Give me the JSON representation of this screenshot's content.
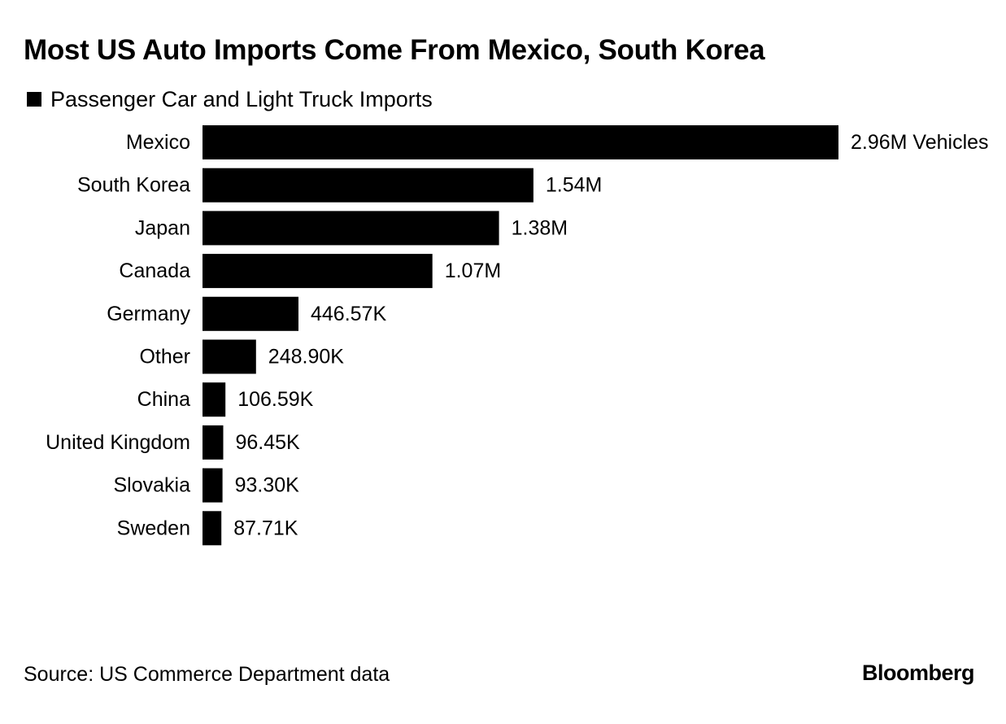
{
  "chart_data": {
    "type": "bar",
    "orientation": "horizontal",
    "title": "Most US Auto Imports Come From Mexico, South Korea",
    "legend": [
      "Passenger Car and Light Truck Imports"
    ],
    "categories": [
      "Mexico",
      "South Korea",
      "Japan",
      "Canada",
      "Germany",
      "Other",
      "China",
      "United Kingdom",
      "Slovakia",
      "Sweden"
    ],
    "series": [
      {
        "name": "Passenger Car and Light Truck Imports",
        "values": [
          2960000,
          1540000,
          1380000,
          1070000,
          446570,
          248900,
          106590,
          96450,
          93300,
          87710
        ],
        "labels": [
          "2.96M Vehicles",
          "1.54M",
          "1.38M",
          "1.07M",
          "446.57K",
          "248.90K",
          "106.59K",
          "96.45K",
          "93.30K",
          "87.71K"
        ]
      }
    ],
    "xlim": [
      0,
      2960000
    ],
    "grid": false,
    "xlabel": "",
    "ylabel": ""
  },
  "footer": {
    "source": "Source: US Commerce Department data",
    "brand": "Bloomberg"
  },
  "colors": {
    "bar": "#000000",
    "text": "#000000",
    "background": "#ffffff"
  }
}
